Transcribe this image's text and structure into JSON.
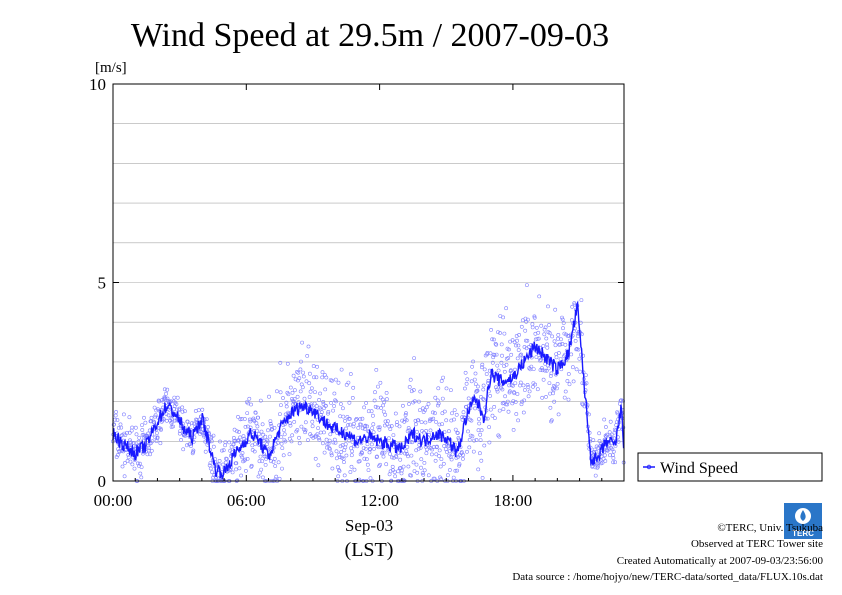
{
  "chart_data": {
    "type": "scatter",
    "title": "Wind Speed at 29.5m / 2007-09-03",
    "ylabel": "[m/s]",
    "xlabel_date": "Sep-03",
    "xlabel_tz": "(LST)",
    "xlim": [
      0,
      23
    ],
    "ylim": [
      0,
      10
    ],
    "x_ticks": [
      0,
      6,
      12,
      18
    ],
    "x_tick_labels": [
      "00:00",
      "06:00",
      "12:00",
      "18:00"
    ],
    "y_ticks": [
      0,
      5,
      10
    ],
    "y_tick_labels": [
      "0",
      "5",
      "10"
    ],
    "grid": true,
    "legend_position": "right",
    "series": [
      {
        "name": "Wind Speed",
        "color": "#1a1aff",
        "mean": [
          [
            0.0,
            1.2
          ],
          [
            0.5,
            0.9
          ],
          [
            1.0,
            0.7
          ],
          [
            1.5,
            0.9
          ],
          [
            2.0,
            1.5
          ],
          [
            2.4,
            1.9
          ],
          [
            2.8,
            1.7
          ],
          [
            3.2,
            1.3
          ],
          [
            3.6,
            1.1
          ],
          [
            4.0,
            1.6
          ],
          [
            4.3,
            1.0
          ],
          [
            4.6,
            0.3
          ],
          [
            5.0,
            0.2
          ],
          [
            5.4,
            0.6
          ],
          [
            5.8,
            0.9
          ],
          [
            6.2,
            1.2
          ],
          [
            6.6,
            1.0
          ],
          [
            7.0,
            0.6
          ],
          [
            7.5,
            1.3
          ],
          [
            8.0,
            1.7
          ],
          [
            8.5,
            1.9
          ],
          [
            9.0,
            1.8
          ],
          [
            9.5,
            1.5
          ],
          [
            10.0,
            1.3
          ],
          [
            10.5,
            1.2
          ],
          [
            11.0,
            1.0
          ],
          [
            11.5,
            1.1
          ],
          [
            12.0,
            1.0
          ],
          [
            12.5,
            0.9
          ],
          [
            13.0,
            0.8
          ],
          [
            13.5,
            1.2
          ],
          [
            14.0,
            1.0
          ],
          [
            14.5,
            1.2
          ],
          [
            15.0,
            1.1
          ],
          [
            15.5,
            0.7
          ],
          [
            15.9,
            1.6
          ],
          [
            16.3,
            2.1
          ],
          [
            16.7,
            1.6
          ],
          [
            17.0,
            2.7
          ],
          [
            17.5,
            2.5
          ],
          [
            18.0,
            2.6
          ],
          [
            18.5,
            3.0
          ],
          [
            19.0,
            3.4
          ],
          [
            19.5,
            3.1
          ],
          [
            20.0,
            2.8
          ],
          [
            20.5,
            3.2
          ],
          [
            20.9,
            4.4
          ],
          [
            21.2,
            2.5
          ],
          [
            21.5,
            0.6
          ],
          [
            21.8,
            0.5
          ],
          [
            22.2,
            1.0
          ],
          [
            22.6,
            0.9
          ],
          [
            22.9,
            1.9
          ],
          [
            23.0,
            0.7
          ]
        ],
        "scatter_spread": [
          [
            0.0,
            0.5
          ],
          [
            4.0,
            0.3
          ],
          [
            7.0,
            0.9
          ],
          [
            12.0,
            1.0
          ],
          [
            17.0,
            1.0
          ],
          [
            21.0,
            1.0
          ],
          [
            21.5,
            0.4
          ],
          [
            23.0,
            0.4
          ]
        ]
      }
    ]
  },
  "footer": {
    "copyright": "©TERC, Univ. Tsukuba",
    "observed": "Observed at TERC Tower site",
    "created": "Created Automatically at 2007-09-03/23:56:00",
    "source": "Data source : /home/hojyo/new/TERC-data/sorted_data/FLUX.10s.dat"
  },
  "logo": {
    "text": "TERC"
  }
}
